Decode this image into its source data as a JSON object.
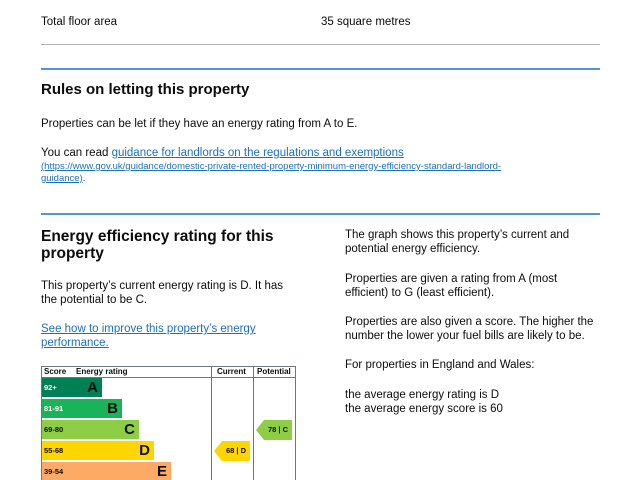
{
  "floor_area": {
    "label": "Total floor area",
    "value": "35 square metres"
  },
  "letting": {
    "title": "Rules on letting this property",
    "p1": "Properties can be let if they have an energy rating from A to E.",
    "p2_prefix": "You can read ",
    "p2_link": "guidance for landlords on the regulations and exemptions",
    "p2_url_1": "(https://www.gov.uk/guidance/domestic-private-rented-property-minimum-energy-efficiency-standard-landlord-",
    "p2_url_2": "guidance)",
    "p2_suffix": "."
  },
  "efficiency": {
    "title_1": "Energy efficiency rating for this",
    "title_2": "property",
    "current_text_1": "This property’s current energy rating is D. It has",
    "current_text_2": "the potential to be C.",
    "improve_link_1": "See how to improve this property’s energy",
    "improve_link_2": "performance.",
    "right": {
      "p1_1": "The graph shows this property’s current and",
      "p1_2": "potential energy efficiency.",
      "p2_1": "Properties are given a rating from A (most",
      "p2_2": "efficient) to G (least efficient).",
      "p3_1": "Properties are also given a score. The higher the",
      "p3_2": "number the lower your fuel bills are likely to be.",
      "p4": "For properties in England and Wales:",
      "p5_1": "the average energy rating is D",
      "p5_2": "the average energy score is 60"
    }
  },
  "chart_data": {
    "type": "table",
    "headers": {
      "score": "Score",
      "rating": "Energy rating",
      "current": "Current",
      "potential": "Potential"
    },
    "bands": [
      {
        "score": "92+",
        "letter": "A",
        "color": "#008054"
      },
      {
        "score": "81-91",
        "letter": "B",
        "color": "#19b459"
      },
      {
        "score": "69-80",
        "letter": "C",
        "color": "#8dce46"
      },
      {
        "score": "55-68",
        "letter": "D",
        "color": "#ffd500"
      },
      {
        "score": "39-54",
        "letter": "E",
        "color": "#fcaa65"
      }
    ],
    "current": {
      "score": 68,
      "band": "D",
      "label": "68 | D",
      "color": "#ffd500"
    },
    "potential": {
      "score": 78,
      "band": "C",
      "label": "78 | C",
      "color": "#8dce46"
    }
  }
}
